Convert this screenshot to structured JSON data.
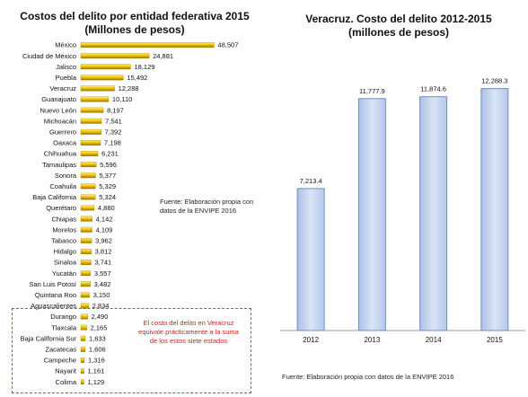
{
  "chart_data": [
    {
      "type": "bar",
      "orientation": "horizontal",
      "title": "Costos del delito por entidad federativa 2015",
      "subtitle": "(Millones de pesos)",
      "categories": [
        "México",
        "Ciudad de México",
        "Jalisco",
        "Puebla",
        "Veracruz",
        "Guanajuato",
        "Nuevo León",
        "Michoacán",
        "Guerrero",
        "Oaxaca",
        "Chihuahua",
        "Tamaulipas",
        "Sonora",
        "Coahuila",
        "Baja California",
        "Querétaro",
        "Chiapas",
        "Morelos",
        "Tabasco",
        "Hidalgo",
        "Sinaloa",
        "Yucatán",
        "San Luis Potosí",
        "Quintana Roo",
        "Aguascalientes",
        "Durango",
        "Tlaxcala",
        "Baja California Sur",
        "Zacatecas",
        "Campeche",
        "Nayarit",
        "Colima"
      ],
      "values": [
        48507,
        24881,
        18129,
        15492,
        12288,
        10110,
        8197,
        7541,
        7392,
        7198,
        6231,
        5596,
        5377,
        5329,
        5324,
        4880,
        4142,
        4109,
        3962,
        3812,
        3741,
        3557,
        3482,
        3150,
        2834,
        2490,
        2165,
        1633,
        1606,
        1316,
        1161,
        1129
      ],
      "value_labels": [
        "48,507",
        "24,881",
        "18,129",
        "15,492",
        "12,288",
        "10,110",
        "8,197",
        "7,541",
        "7,392",
        "7,198",
        "6,231",
        "5,596",
        "5,377",
        "5,329",
        "5,324",
        "4,880",
        "4,142",
        "4,109",
        "3,962",
        "3,812",
        "3,741",
        "3,557",
        "3,482",
        "3,150",
        "2,834",
        "2,490",
        "2,165",
        "1,633",
        "1,606",
        "1,316",
        "1,161",
        "1,129"
      ],
      "xlim": [
        0,
        50000
      ],
      "bar_color": "#f2c200",
      "source_note": "Fuente: Elaboración propia con datos de la ENVIPE 2016",
      "annotation": "El costo del delito en Veracruz equivale  prácticamente a la suma de los estos siete estados",
      "annotation_color": "#d01f1f"
    },
    {
      "type": "bar",
      "title": "Veracruz. Costo del delito 2012-2015",
      "subtitle": "(millones de pesos)",
      "categories": [
        "2012",
        "2013",
        "2014",
        "2015"
      ],
      "values": [
        7213.4,
        11777.9,
        11874.6,
        12288.3
      ],
      "value_labels": [
        "7,213.4",
        "11,777.9",
        "11,874.6",
        "12,288.3"
      ],
      "ylim": [
        0,
        13000
      ],
      "bar_color": "#c7d7f1",
      "bar_stroke": "#6f8fc4",
      "source_note": "Fuente: Elaboración propia con datos de la ENVIPE 2016"
    }
  ]
}
